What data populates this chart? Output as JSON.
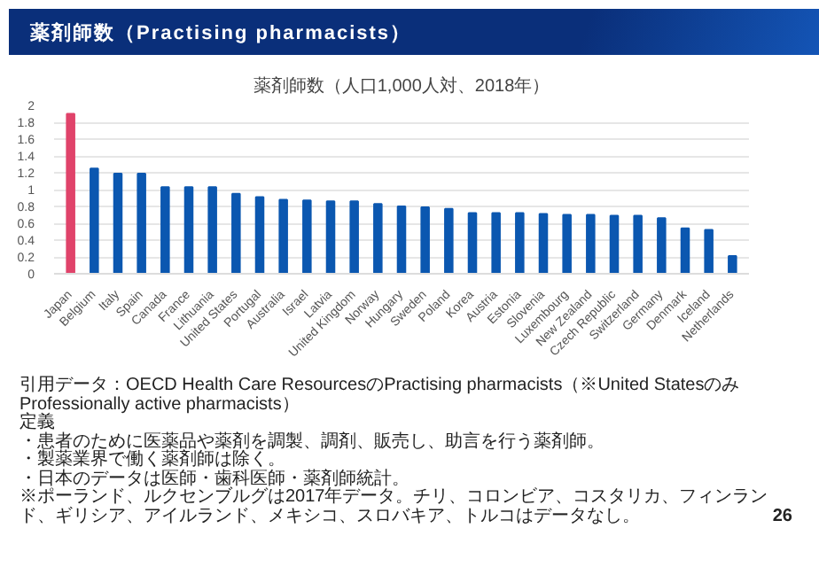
{
  "chart_data": {
    "type": "bar",
    "title": "薬剤師数（Practising pharmacists）",
    "subtitle": "薬剤師数（人口1,000人対、2018年）",
    "categories": [
      "Japan",
      "Belgium",
      "Italy",
      "Spain",
      "Canada",
      "France",
      "Lithuania",
      "United States",
      "Portugal",
      "Australia",
      "Israel",
      "Latvia",
      "United Kingdom",
      "Norway",
      "Hungary",
      "Sweden",
      "Poland",
      "Korea",
      "Austria",
      "Estonia",
      "Slovenia",
      "Luxembourg",
      "New Zealand",
      "Czech Republic",
      "Switzerland",
      "Germany",
      "Denmark",
      "Iceland",
      "Netherlands"
    ],
    "values": [
      1.9,
      1.25,
      1.19,
      1.19,
      1.03,
      1.03,
      1.03,
      0.95,
      0.91,
      0.88,
      0.87,
      0.86,
      0.86,
      0.83,
      0.8,
      0.79,
      0.77,
      0.72,
      0.72,
      0.72,
      0.71,
      0.7,
      0.7,
      0.69,
      0.69,
      0.66,
      0.54,
      0.52,
      0.21
    ],
    "colors": [
      "#e0436a",
      "#0b57b0",
      "#0b57b0",
      "#0b57b0",
      "#0b57b0",
      "#0b57b0",
      "#0b57b0",
      "#0b57b0",
      "#0b57b0",
      "#0b57b0",
      "#0b57b0",
      "#0b57b0",
      "#0b57b0",
      "#0b57b0",
      "#0b57b0",
      "#0b57b0",
      "#0b57b0",
      "#0b57b0",
      "#0b57b0",
      "#0b57b0",
      "#0b57b0",
      "#0b57b0",
      "#0b57b0",
      "#0b57b0",
      "#0b57b0",
      "#0b57b0",
      "#0b57b0",
      "#0b57b0",
      "#0b57b0"
    ],
    "ylim": [
      0,
      2
    ],
    "yticks": [
      0,
      0.2,
      0.4,
      0.6,
      0.8,
      1,
      1.2,
      1.4,
      1.6,
      1.8,
      2
    ],
    "grid": "y",
    "annotations": [
      "引用データ：OECD Health Care ResourcesのPractising pharmacists（※United StatesのみProfessionally active pharmacists）",
      "定義",
      "・患者のために医薬品や薬剤を調製、調剤、販売し、助言を行う薬剤師。",
      "・製薬業界で働く薬剤師は除く。",
      "・日本のデータは医師・歯科医師・薬剤師統計。",
      "※ポーランド、ルクセンブルグは2017年データ。チリ、コロンビア、コスタリカ、フィンランド、ギリシア、アイルランド、メキシコ、スロバキア、トルコはデータなし。",
      "26"
    ]
  }
}
